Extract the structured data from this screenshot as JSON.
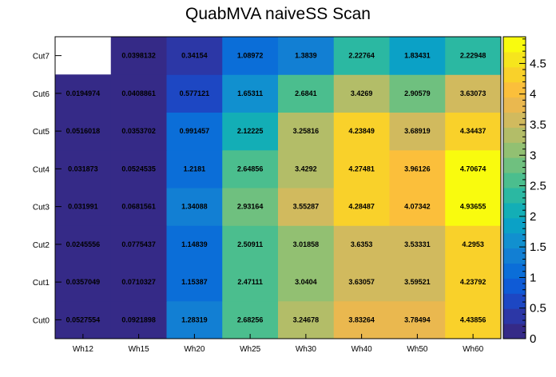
{
  "chart_data": {
    "type": "heatmap",
    "title": "QuabMVA naiveSS Scan",
    "x_categories": [
      "Wh12",
      "Wh15",
      "Wh20",
      "Wh25",
      "Wh30",
      "Wh40",
      "Wh50",
      "Wh60"
    ],
    "y_categories": [
      "Cut0",
      "Cut1",
      "Cut2",
      "Cut3",
      "Cut4",
      "Cut5",
      "Cut6",
      "Cut7"
    ],
    "values": [
      [
        "0.0527554",
        "0.0921898",
        "1.28319",
        "2.68256",
        "3.24678",
        "3.83264",
        "3.78494",
        "4.43856"
      ],
      [
        "0.0357049",
        "0.0710327",
        "1.15387",
        "2.47111",
        "3.0404",
        "3.63057",
        "3.59521",
        "4.23792"
      ],
      [
        "0.0245556",
        "0.0775437",
        "1.14839",
        "2.50911",
        "3.01858",
        "3.6353",
        "3.53331",
        "4.2953"
      ],
      [
        "0.031991",
        "0.0681561",
        "1.34088",
        "2.93164",
        "3.55287",
        "4.28487",
        "4.07342",
        "4.93655"
      ],
      [
        "0.031873",
        "0.0524535",
        "1.2181",
        "2.64856",
        "3.4292",
        "4.27481",
        "3.96126",
        "4.70674"
      ],
      [
        "0.0516018",
        "0.0353702",
        "0.991457",
        "2.12225",
        "3.25816",
        "4.23849",
        "3.68919",
        "4.34437"
      ],
      [
        "0.0194974",
        "0.0408861",
        "0.577121",
        "1.65311",
        "2.6841",
        "3.4269",
        "2.90579",
        "3.63073"
      ],
      [
        null,
        "0.0398132",
        "0.34154",
        "1.08972",
        "1.3839",
        "2.22764",
        "1.83431",
        "2.22948"
      ]
    ],
    "zlim": [
      0,
      4.93655
    ],
    "z_ticks": [
      "0",
      "0.5",
      "1",
      "1.5",
      "2",
      "2.5",
      "3",
      "3.5",
      "4",
      "4.5"
    ],
    "colorbar_position": "right",
    "palette": [
      "#352a87",
      "#2c37a6",
      "#1d47c3",
      "#0f5bd6",
      "#0b6ed8",
      "#127fd3",
      "#1190cf",
      "#0ba1c6",
      "#13aeb6",
      "#2bb8a2",
      "#4bbe8e",
      "#6fc07f",
      "#92c072",
      "#b3bd68",
      "#d1ba5e",
      "#eab84f",
      "#fbbf3b",
      "#f9d12a",
      "#f6e51d",
      "#f9fb0e"
    ]
  }
}
